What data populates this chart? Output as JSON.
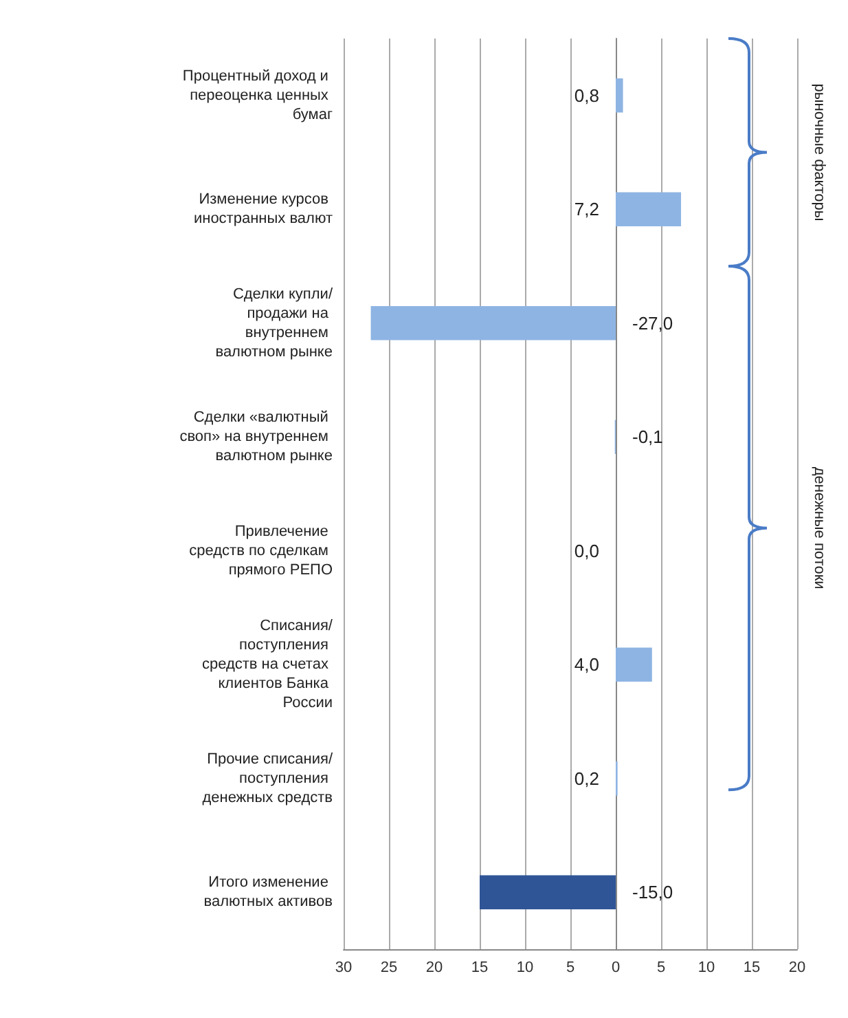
{
  "chart_data": {
    "type": "bar",
    "orientation": "horizontal",
    "categories": [
      "Процентный доход и переоценка ценных бумаг",
      "Изменение курсов иностранных валют",
      "Сделки купли/продажи на внутреннем валютном рынке",
      "Сделки «валютный своп» на внутреннем валютном рынке",
      "Привлечение средств по сделкам прямого РЕПО",
      "Списания/поступления средств на счетах клиентов Банка России",
      "Прочие списания/поступления денежных средств",
      "Итого изменение валютных активов"
    ],
    "values": [
      0.8,
      7.2,
      -27.0,
      -0.1,
      0.0,
      4.0,
      0.2,
      -15.0
    ],
    "value_labels": [
      "0,8",
      "7,2",
      "-27,0",
      "-0,1",
      "0,0",
      "4,0",
      "0,2",
      "-15,0"
    ],
    "colors": [
      "#8eb4e3",
      "#8eb4e3",
      "#8eb4e3",
      "#8eb4e3",
      "#8eb4e3",
      "#8eb4e3",
      "#8eb4e3",
      "#2f5597"
    ],
    "xlim": [
      -30,
      20
    ],
    "xticks": [
      {
        "value": -30,
        "label": "30"
      },
      {
        "value": -25,
        "label": "25"
      },
      {
        "value": -20,
        "label": "20"
      },
      {
        "value": -15,
        "label": "15"
      },
      {
        "value": -10,
        "label": "10"
      },
      {
        "value": -5,
        "label": "5"
      },
      0,
      5,
      10,
      15,
      20
    ],
    "grid": "x",
    "annotations": [
      "рыночные факторы",
      "денежные потоки"
    ]
  }
}
